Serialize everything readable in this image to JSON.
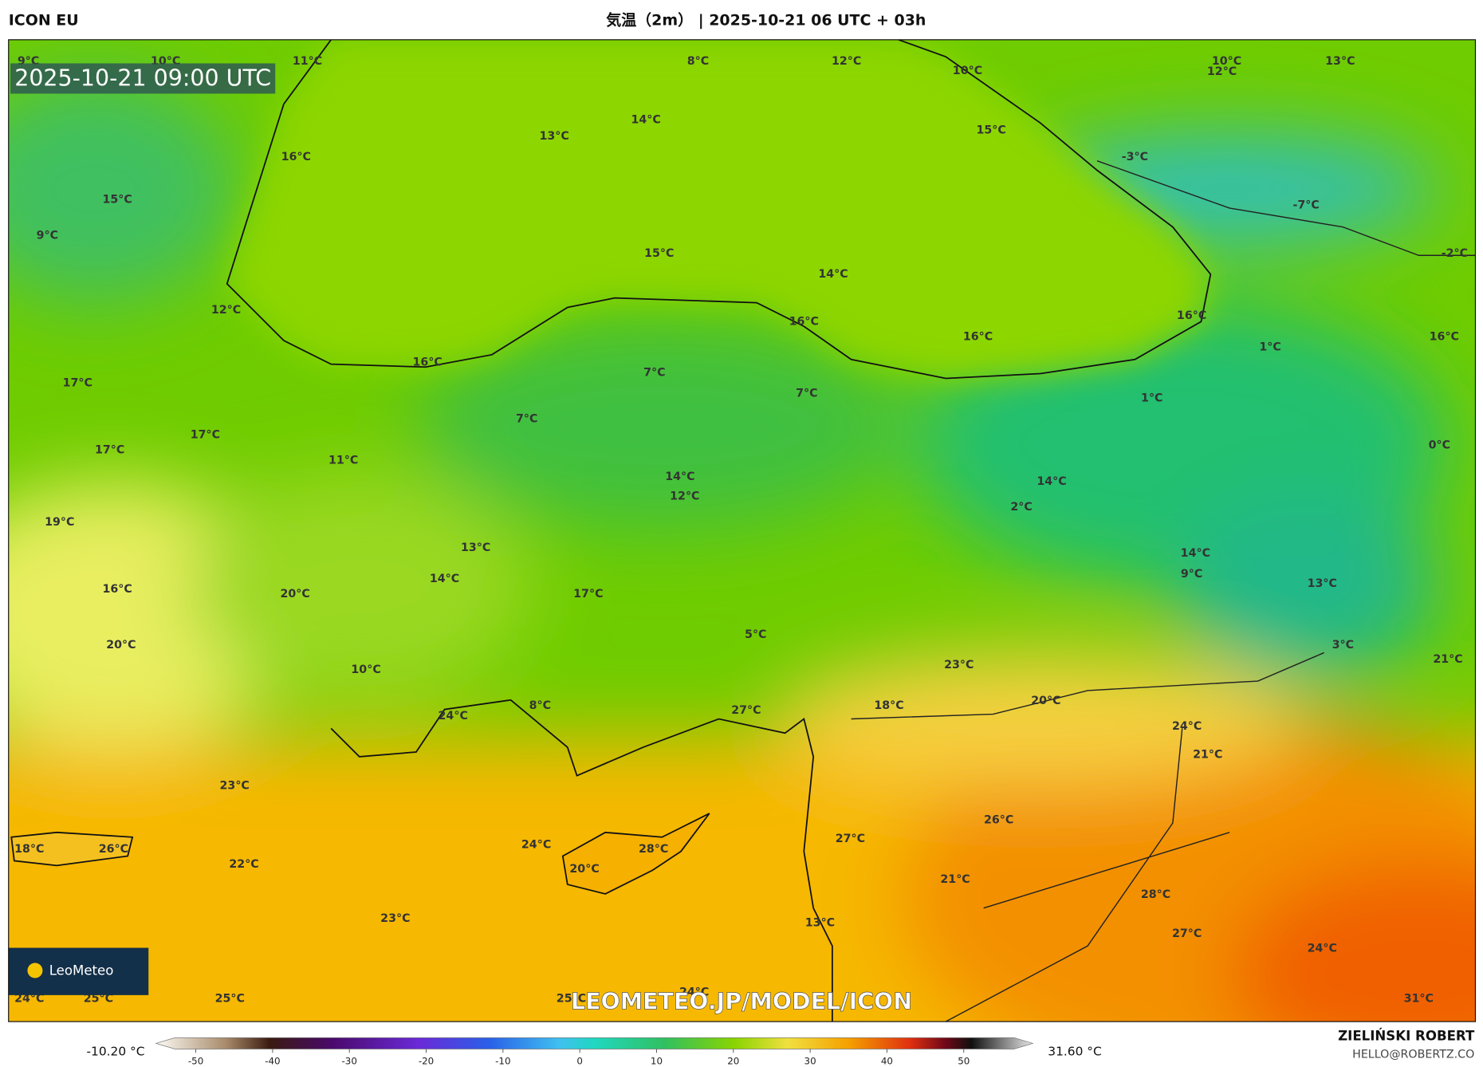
{
  "header": {
    "model": "ICON EU",
    "title": "気温（2m） | 2025-10-21 06 UTC + 03h"
  },
  "map": {
    "timestamp": "2025-10-21 09:00 UTC",
    "watermark": "LEOMETEO.JP/MODEL/ICON",
    "logo": "LeoMeteo",
    "labels": [
      "9°C",
      "10°C",
      "11°C",
      "8°C",
      "12°C",
      "10°C",
      "10°C",
      "12°C",
      "13°C",
      "14°C",
      "13°C",
      "15°C",
      "16°C",
      "-3°C",
      "15°C",
      "9°C",
      "-7°C",
      "15°C",
      "14°C",
      "-2°C",
      "12°C",
      "16°C",
      "16°C",
      "16°C",
      "16°C",
      "1°C",
      "16°C",
      "17°C",
      "7°C",
      "7°C",
      "1°C",
      "7°C",
      "17°C",
      "17°C",
      "11°C",
      "0°C",
      "14°C",
      "12°C",
      "14°C",
      "2°C",
      "19°C",
      "13°C",
      "14°C",
      "14°C",
      "9°C",
      "16°C",
      "17°C",
      "13°C",
      "20°C",
      "5°C",
      "20°C",
      "3°C",
      "10°C",
      "23°C",
      "21°C",
      "8°C",
      "24°C",
      "27°C",
      "18°C",
      "20°C",
      "24°C",
      "21°C",
      "23°C",
      "26°C",
      "18°C",
      "26°C",
      "27°C",
      "24°C",
      "22°C",
      "28°C",
      "20°C",
      "21°C",
      "28°C",
      "23°C",
      "27°C",
      "13°C",
      "24°C",
      "24°C",
      "25°C",
      "25°C",
      "25°C",
      "24°C",
      "31°C"
    ]
  },
  "colorbar": {
    "min_label": "-10.20 °C",
    "max_label": "31.60 °C",
    "ticks": [
      -50,
      -40,
      -30,
      -20,
      -10,
      0,
      10,
      20,
      30,
      40,
      50
    ]
  },
  "footer": {
    "author": "ZIELIŃSKI ROBERT",
    "email": "HELLO@ROBERTZ.CO"
  }
}
